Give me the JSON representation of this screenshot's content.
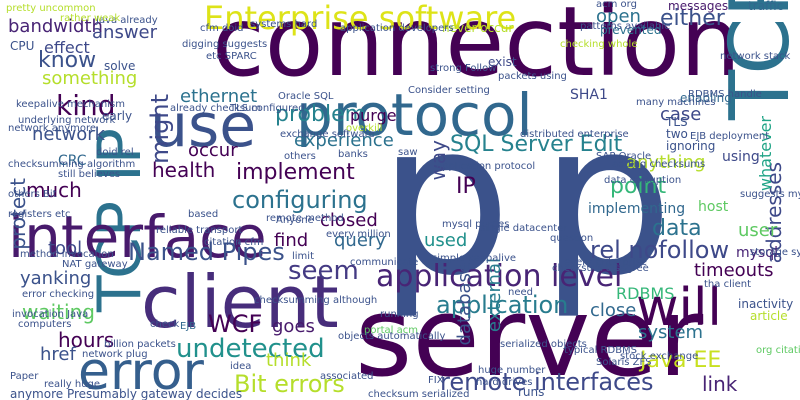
{
  "word_cloud": {
    "background": "#ffffff",
    "words": [
      {
        "text": "connection",
        "color": "#440154"
      },
      {
        "text": "server",
        "color": "#440154"
      },
      {
        "text": "p",
        "color": "#3b528b"
      },
      {
        "text": "p",
        "color": "#3b528b"
      },
      {
        "text": "client",
        "color": "#472d7b"
      },
      {
        "text": "TCP",
        "color": "#2c728e"
      },
      {
        "text": "TCP IP",
        "color": "#2c728e"
      },
      {
        "text": "interface",
        "color": "#481a6c"
      },
      {
        "text": "protocol",
        "color": "#31688e"
      },
      {
        "text": "use",
        "color": "#3b528b"
      },
      {
        "text": "error",
        "color": "#355f8d"
      },
      {
        "text": "will",
        "color": "#440154"
      },
      {
        "text": "application level",
        "color": "#482475"
      },
      {
        "text": "Enterprise software",
        "color": "#dde318"
      },
      {
        "text": "application",
        "color": "#287c8e"
      },
      {
        "text": "remote interfaces",
        "color": "#3e4989"
      },
      {
        "text": "Bit errors",
        "color": "#b5de2b"
      },
      {
        "text": "undetected",
        "color": "#21918c"
      },
      {
        "text": "Java EE",
        "color": "#c8e020"
      },
      {
        "text": "configuring",
        "color": "#2c728e"
      },
      {
        "text": "implement",
        "color": "#440154"
      },
      {
        "text": "SQL Server Edit",
        "color": "#26828e"
      },
      {
        "text": "rel nofollow",
        "color": "#3e4989"
      },
      {
        "text": "Named Pipes",
        "color": "#3b528b"
      },
      {
        "text": "seem",
        "color": "#443a83"
      },
      {
        "text": "problem",
        "color": "#26828e"
      },
      {
        "text": "experience",
        "color": "#2c728e"
      },
      {
        "text": "kind",
        "color": "#440154"
      },
      {
        "text": "might",
        "color": "#3e4989"
      },
      {
        "text": "either",
        "color": "#3b528b"
      },
      {
        "text": "addresses",
        "color": "#3e4989"
      },
      {
        "text": "whatever",
        "color": "#20a486"
      },
      {
        "text": "database",
        "color": "#3b528b"
      },
      {
        "text": "external",
        "color": "#287c8e"
      },
      {
        "text": "IP",
        "color": "#440154"
      },
      {
        "text": "point",
        "color": "#35b779"
      },
      {
        "text": "data",
        "color": "#2c728e"
      },
      {
        "text": "user",
        "color": "#5ec962"
      },
      {
        "text": "answer",
        "color": "#3e4989"
      },
      {
        "text": "bandwidth",
        "color": "#482475"
      },
      {
        "text": "know",
        "color": "#3b528b"
      },
      {
        "text": "something",
        "color": "#b5de2b"
      },
      {
        "text": "protect",
        "color": "#3b528b"
      },
      {
        "text": "network",
        "color": "#3b528b"
      },
      {
        "text": "health",
        "color": "#440154"
      },
      {
        "text": "much",
        "color": "#440154"
      },
      {
        "text": "tool",
        "color": "#3e4989"
      },
      {
        "text": "waiting",
        "color": "#5ec962"
      },
      {
        "text": "hours",
        "color": "#440154"
      },
      {
        "text": "href",
        "color": "#3b528b"
      },
      {
        "text": "WCF",
        "color": "#440154"
      },
      {
        "text": "think",
        "color": "#b5de2b"
      },
      {
        "text": "goes",
        "color": "#481a6c"
      },
      {
        "text": "link",
        "color": "#482475"
      },
      {
        "text": "timeouts",
        "color": "#440154"
      },
      {
        "text": "system",
        "color": "#2c728e"
      },
      {
        "text": "close",
        "color": "#31688e"
      },
      {
        "text": "RDBMS",
        "color": "#35b779"
      },
      {
        "text": "find",
        "color": "#440154"
      },
      {
        "text": "query",
        "color": "#31688e"
      },
      {
        "text": "used",
        "color": "#21918c"
      },
      {
        "text": "closed",
        "color": "#440154"
      },
      {
        "text": "way",
        "color": "#3e4989"
      },
      {
        "text": "anything",
        "color": "#b5de2b"
      },
      {
        "text": "case",
        "color": "#3e4989"
      },
      {
        "text": "ethernet",
        "color": "#2c728e"
      },
      {
        "text": "occur",
        "color": "#440154"
      },
      {
        "text": "purge",
        "color": "#440154"
      },
      {
        "text": "open",
        "color": "#2c728e"
      },
      {
        "text": "effect",
        "color": "#3e4989"
      },
      {
        "text": "yanking",
        "color": "#3b528b"
      },
      {
        "text": "CRC",
        "color": "#31688e"
      },
      {
        "text": "implementing",
        "color": "#31688e"
      },
      {
        "text": "host",
        "color": "#5ec962"
      },
      {
        "text": "mysql",
        "color": "#482475"
      },
      {
        "text": "using",
        "color": "#3e4989"
      },
      {
        "text": "exist",
        "color": "#3e4989"
      },
      {
        "text": "SHA1",
        "color": "#3e4989"
      },
      {
        "text": "enabling",
        "color": "#31688e"
      },
      {
        "text": "messages",
        "color": "#481a6c"
      },
      {
        "text": "traffic",
        "color": "#31688e"
      },
      {
        "text": "TLS",
        "color": "#3b528b"
      },
      {
        "text": "two",
        "color": "#3b528b"
      },
      {
        "text": "ignoring",
        "color": "#3b528b"
      },
      {
        "text": "prevented",
        "color": "#2c728e"
      },
      {
        "text": "acm org",
        "color": "#3b528b"
      },
      {
        "text": "CPU",
        "color": "#3b528b"
      },
      {
        "text": "solve",
        "color": "#3b528b"
      },
      {
        "text": "early",
        "color": "#3b528b"
      },
      {
        "text": "doid rel",
        "color": "#3b528b"
      },
      {
        "text": "still believes",
        "color": "#3b528b"
      },
      {
        "text": "NAT gateway",
        "color": "#3b528b"
      },
      {
        "text": "computers",
        "color": "#3b528b"
      },
      {
        "text": "Paper",
        "color": "#3b528b"
      },
      {
        "text": "network plug",
        "color": "#3b528b"
      },
      {
        "text": "billion packets",
        "color": "#3b528b"
      },
      {
        "text": "check",
        "color": "#3b528b"
      },
      {
        "text": "EJB",
        "color": "#31688e"
      },
      {
        "text": "idea",
        "color": "#3b528b"
      },
      {
        "text": "associated",
        "color": "#3b528b"
      },
      {
        "text": "FIX",
        "color": "#3b528b"
      },
      {
        "text": "running",
        "color": "#3b528b"
      },
      {
        "text": "need",
        "color": "#3b528b"
      },
      {
        "text": "portal acm",
        "color": "#5ec962"
      },
      {
        "text": "communicate",
        "color": "#3b528b"
      },
      {
        "text": "limit",
        "color": "#3b528b"
      },
      {
        "text": "Anyone",
        "color": "#3b528b"
      },
      {
        "text": "based",
        "color": "#3b528b"
      },
      {
        "text": "others",
        "color": "#3b528b"
      },
      {
        "text": "banks",
        "color": "#3b528b"
      },
      {
        "text": "saw",
        "color": "#3b528b"
      },
      {
        "text": "overkill",
        "color": "#b5de2b"
      },
      {
        "text": "Oracle SQL",
        "color": "#3b528b"
      },
      {
        "text": "Consider setting",
        "color": "#3b528b"
      },
      {
        "text": "runs",
        "color": "#3b528b"
      },
      {
        "text": "typical RDBMS",
        "color": "#3b528b"
      },
      {
        "text": "inactivity",
        "color": "#3b528b"
      },
      {
        "text": "article",
        "color": "#b5de2b"
      },
      {
        "text": "tha client",
        "color": "#3b528b"
      },
      {
        "text": "question",
        "color": "#3b528b"
      },
      {
        "text": "suggests mysql",
        "color": "#3b528b"
      },
      {
        "text": "RDBMS handle",
        "color": "#3b528b"
      },
      {
        "text": "network anymore",
        "color": "#3b528b"
      },
      {
        "text": "keepalive mechanism",
        "color": "#3b528b"
      },
      {
        "text": "checksumming algorithm",
        "color": "#3b528b"
      },
      {
        "text": "anymore Presumably gateway decides",
        "color": "#3b528b"
      },
      {
        "text": "Java already",
        "color": "#3b528b"
      },
      {
        "text": "cfm doid",
        "color": "#3b528b"
      },
      {
        "text": "digging suggests",
        "color": "#3b528b"
      },
      {
        "text": "never occur",
        "color": "#b5de2b"
      },
      {
        "text": "application developers",
        "color": "#3b528b"
      },
      {
        "text": "packets using",
        "color": "#3b528b"
      },
      {
        "text": "patterns available",
        "color": "#3b528b"
      },
      {
        "text": "distributed enterprise",
        "color": "#3b528b"
      },
      {
        "text": "TLS configured",
        "color": "#3b528b"
      },
      {
        "text": "already checksum",
        "color": "#3b528b"
      },
      {
        "text": "exchange software",
        "color": "#3b528b"
      },
      {
        "text": "remote method",
        "color": "#3b528b"
      },
      {
        "text": "citation cfm",
        "color": "#3b528b"
      },
      {
        "text": "every million",
        "color": "#3b528b"
      },
      {
        "text": "simple keepalive",
        "color": "#3b528b"
      },
      {
        "text": "checksum disagree",
        "color": "#3b528b"
      },
      {
        "text": "serialized objects",
        "color": "#3b528b"
      },
      {
        "text": "checksum serialized",
        "color": "#3b528b"
      },
      {
        "text": "invocation Java",
        "color": "#3b528b"
      },
      {
        "text": "error checking",
        "color": "#3b528b"
      },
      {
        "text": "method invocation",
        "color": "#3b528b"
      },
      {
        "text": "registers etc",
        "color": "#3b528b"
      },
      {
        "text": "others Bit",
        "color": "#3b528b"
      },
      {
        "text": "rather weak",
        "color": "#b5de2b"
      },
      {
        "text": "systems hard",
        "color": "#3b528b"
      },
      {
        "text": "stock exchange",
        "color": "#3b528b"
      },
      {
        "text": "Solaris ZFS",
        "color": "#3b528b"
      },
      {
        "text": "hard drives",
        "color": "#3b528b"
      },
      {
        "text": "huge number",
        "color": "#3b528b"
      },
      {
        "text": "storage systems",
        "color": "#3b528b"
      },
      {
        "text": "really huge",
        "color": "#3b528b"
      },
      {
        "text": "pretty uncommon",
        "color": "#b5de2b"
      },
      {
        "text": "underlying network",
        "color": "#3b528b"
      },
      {
        "text": "application protocol",
        "color": "#3b528b"
      },
      {
        "text": "mysql purges",
        "color": "#3b528b"
      },
      {
        "text": "data corruption",
        "color": "#3b528b"
      },
      {
        "text": "adding checksums",
        "color": "#3b528b"
      },
      {
        "text": "many machines",
        "color": "#3b528b"
      },
      {
        "text": "SAP Oracle",
        "color": "#3b528b"
      },
      {
        "text": "EJB deployment",
        "color": "#3b528b"
      },
      {
        "text": "single datacenter",
        "color": "#3b528b"
      },
      {
        "text": "every Enterprise",
        "color": "#3b528b"
      },
      {
        "text": "strong Follow",
        "color": "#3b528b"
      },
      {
        "text": "etc SPARC",
        "color": "#3b528b"
      },
      {
        "text": "org citation",
        "color": "#5ec962"
      },
      {
        "text": "reliable transport",
        "color": "#3b528b"
      },
      {
        "text": "checksumming although",
        "color": "#3b528b"
      },
      {
        "text": "objects automatically",
        "color": "#3b528b"
      },
      {
        "text": "checking whole",
        "color": "#b5de2b"
      },
      {
        "text": "network stack",
        "color": "#3b528b"
      }
    ]
  }
}
